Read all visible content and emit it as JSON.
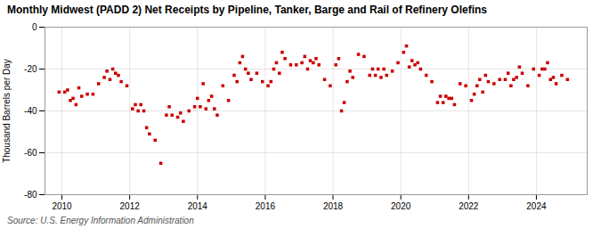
{
  "chart_data": {
    "type": "scatter",
    "title": "Monthly Midwest (PADD 2) Net Receipts by Pipeline, Tanker, Barge and Rail of Refinery Olefins",
    "ylabel": "Thousand Barrels per Day",
    "source": "Source: U.S. Energy Information Administration",
    "color": "#cc0000",
    "marker": "square",
    "grid": true,
    "xlim": [
      2009.5,
      2025.5
    ],
    "xticks": [
      2010,
      2012,
      2014,
      2016,
      2018,
      2020,
      2022,
      2024
    ],
    "ylim": [
      -80,
      0
    ],
    "yticks": [
      0,
      -20,
      -40,
      -60,
      -80
    ],
    "x": [
      2009.917,
      2010.083,
      2010.25,
      2010.417,
      2010.583,
      2010.75,
      2010.917,
      2011.083,
      2011.25,
      2011.417,
      2011.583,
      2011.75,
      2011.917,
      2012.083,
      2012.25,
      2012.417,
      2012.583,
      2012.75,
      2012.917,
      2013.083,
      2013.25,
      2013.417,
      2013.583,
      2013.75,
      2013.917,
      2014.083,
      2014.25,
      2014.417,
      2014.583,
      2014.75,
      2014.917,
      2015.083,
      2015.25,
      2015.417,
      2015.583,
      2015.75,
      2015.917,
      2016.083,
      2016.25,
      2016.417,
      2016.583,
      2016.75,
      2016.917,
      2017.083,
      2017.25,
      2017.417,
      2017.583,
      2017.75,
      2017.917,
      2018.083,
      2018.25,
      2018.417,
      2018.583,
      2018.75,
      2018.917,
      2019.083,
      2019.25,
      2019.417,
      2019.583,
      2019.75,
      2019.917,
      2020.083,
      2020.25,
      2020.417,
      2020.583,
      2020.75,
      2020.917,
      2021.083,
      2021.25,
      2021.417,
      2021.583,
      2021.75,
      2021.917,
      2022.083,
      2022.25,
      2022.417,
      2022.583,
      2022.75,
      2022.917,
      2023.083,
      2023.25,
      2023.417,
      2023.583,
      2023.75,
      2023.917,
      2024.083,
      2024.25,
      2024.417,
      2024.583,
      2024.75,
      2024.917,
      2010.167,
      2010.33,
      2010.5,
      2011.33,
      2011.5,
      2011.667,
      2012.167,
      2012.33,
      2012.5,
      2013.167,
      2013.5,
      2014.0,
      2014.167,
      2014.33,
      2014.5,
      2015.167,
      2015.33,
      2015.5,
      2016.167,
      2016.33,
      2016.5,
      2017.167,
      2017.33,
      2017.5,
      2018.167,
      2018.33,
      2018.5,
      2019.167,
      2019.33,
      2019.5,
      2020.167,
      2020.33,
      2020.5,
      2021.167,
      2021.33,
      2021.5,
      2022.167,
      2022.33,
      2022.5,
      2023.167,
      2023.33,
      2023.5,
      2024.167,
      2024.33,
      2024.5
    ],
    "values": [
      -31,
      -31,
      -35,
      -37,
      -33,
      -32,
      -32,
      -27,
      -24,
      -25,
      -22,
      -26,
      -28,
      -39,
      -40,
      -40,
      -51,
      -54,
      -65,
      -42,
      -42,
      -43,
      -45,
      -40,
      -38,
      -38,
      -39,
      -33,
      -42,
      -28,
      -35,
      -23,
      -17,
      -20,
      -25,
      -22,
      -26,
      -28,
      -20,
      -22,
      -15,
      -18,
      -18,
      -17,
      -20,
      -17,
      -18,
      -25,
      -28,
      -18,
      -40,
      -26,
      -24,
      -13,
      -14,
      -23,
      -23,
      -24,
      -23,
      -21,
      -17,
      -12,
      -19,
      -18,
      -20,
      -23,
      -26,
      -36,
      -36,
      -34,
      -37,
      -27,
      -28,
      -35,
      -28,
      -31,
      -26,
      -27,
      -25,
      -25,
      -28,
      -24,
      -22,
      -28,
      -20,
      -23,
      -20,
      -25,
      -27,
      -23,
      -25,
      -30,
      -34,
      -29,
      -21,
      -20,
      -23,
      -37,
      -37,
      -48,
      -38,
      -41,
      -34,
      -27,
      -35,
      -39,
      -26,
      -14,
      -22,
      -26,
      -17,
      -12,
      -14,
      -16,
      -15,
      -15,
      -36,
      -21,
      -20,
      -20,
      -20,
      -9,
      -16,
      -17,
      -33,
      -33,
      -34,
      -32,
      -25,
      -23,
      -22,
      -25,
      -19,
      -20,
      -17,
      -24
    ]
  }
}
